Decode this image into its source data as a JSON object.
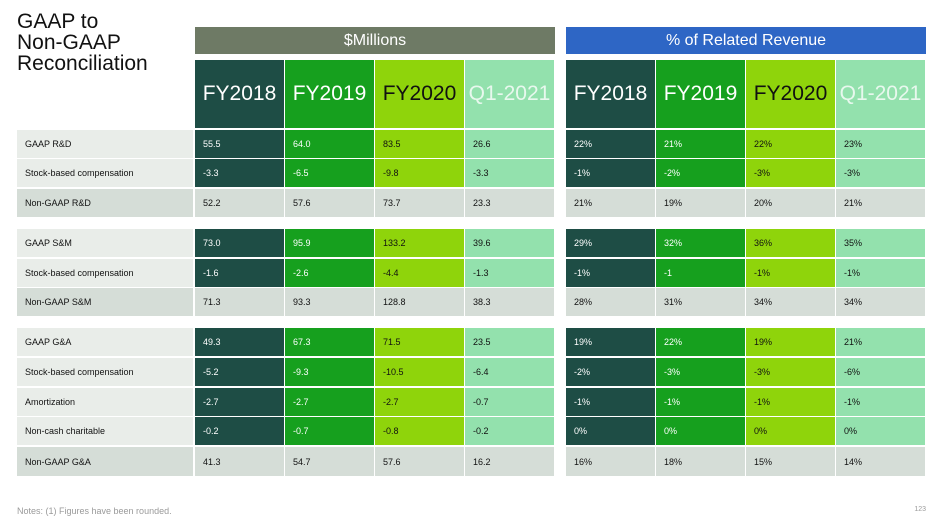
{
  "title_lines": [
    "GAAP to",
    "Non-GAAP",
    "Reconciliation"
  ],
  "groups": {
    "millions": "$Millions",
    "percent": "% of Related Revenue"
  },
  "columns": [
    "FY2018",
    "FY2019",
    "FY2020",
    "Q1-2021"
  ],
  "sections": [
    {
      "rows": [
        {
          "label": "GAAP R&D",
          "kind": "gaap",
          "millions": [
            "55.5",
            "64.0",
            "83.5",
            "26.6"
          ],
          "percent": [
            "22%",
            "21%",
            "22%",
            "23%"
          ]
        },
        {
          "label": "Stock-based compensation",
          "kind": "adj",
          "millions": [
            "-3.3",
            "-6.5",
            "-9.8",
            "-3.3"
          ],
          "percent": [
            "-1%",
            "-2%",
            "-3%",
            "-3%"
          ]
        },
        {
          "label": "Non-GAAP R&D",
          "kind": "nongaap",
          "millions": [
            "52.2",
            "57.6",
            "73.7",
            "23.3"
          ],
          "percent": [
            "21%",
            "19%",
            "20%",
            "21%"
          ]
        }
      ]
    },
    {
      "rows": [
        {
          "label": "GAAP S&M",
          "kind": "gaap",
          "millions": [
            "73.0",
            "95.9",
            "133.2",
            "39.6"
          ],
          "percent": [
            "29%",
            "32%",
            "36%",
            "35%"
          ]
        },
        {
          "label": "Stock-based compensation",
          "kind": "adj",
          "millions": [
            "-1.6",
            "-2.6",
            "-4.4",
            "-1.3"
          ],
          "percent": [
            "-1%",
            "-1",
            "-1%",
            "-1%"
          ]
        },
        {
          "label": "Non-GAAP S&M",
          "kind": "nongaap",
          "millions": [
            "71.3",
            "93.3",
            "128.8",
            "38.3"
          ],
          "percent": [
            "28%",
            "31%",
            "34%",
            "34%"
          ]
        }
      ]
    },
    {
      "rows": [
        {
          "label": "GAAP G&A",
          "kind": "gaap",
          "millions": [
            "49.3",
            "67.3",
            "71.5",
            "23.5"
          ],
          "percent": [
            "19%",
            "22%",
            "19%",
            "21%"
          ]
        },
        {
          "label": "Stock-based compensation",
          "kind": "adj",
          "millions": [
            "-5.2",
            "-9.3",
            "-10.5",
            "-6.4"
          ],
          "percent": [
            "-2%",
            "-3%",
            "-3%",
            "-6%"
          ]
        },
        {
          "label": "Amortization",
          "kind": "adj",
          "millions": [
            "-2.7",
            "-2.7",
            "-2.7",
            "-0.7"
          ],
          "percent": [
            "-1%",
            "-1%",
            "-1%",
            "-1%"
          ]
        },
        {
          "label": "Non-cash charitable",
          "kind": "adj",
          "millions": [
            "-0.2",
            "-0.7",
            "-0.8",
            "-0.2"
          ],
          "percent": [
            "0%",
            "0%",
            "0%",
            "0%"
          ]
        },
        {
          "label": "Non-GAAP G&A",
          "kind": "nongaap",
          "millions": [
            "41.3",
            "54.7",
            "57.6",
            "16.2"
          ],
          "percent": [
            "16%",
            "18%",
            "15%",
            "14%"
          ]
        }
      ]
    }
  ],
  "notes": "Notes: (1) Figures have been rounded.",
  "page_number": "123",
  "colors": {
    "dark": "#1e4d45",
    "green": "#16a01e",
    "lime": "#8fd40b",
    "pale": "#93e1ad",
    "nongaap": "#d5ddd7",
    "label": "#e9ede9",
    "millions_header": "#6e7a65",
    "percent_header": "#2e66c5"
  }
}
